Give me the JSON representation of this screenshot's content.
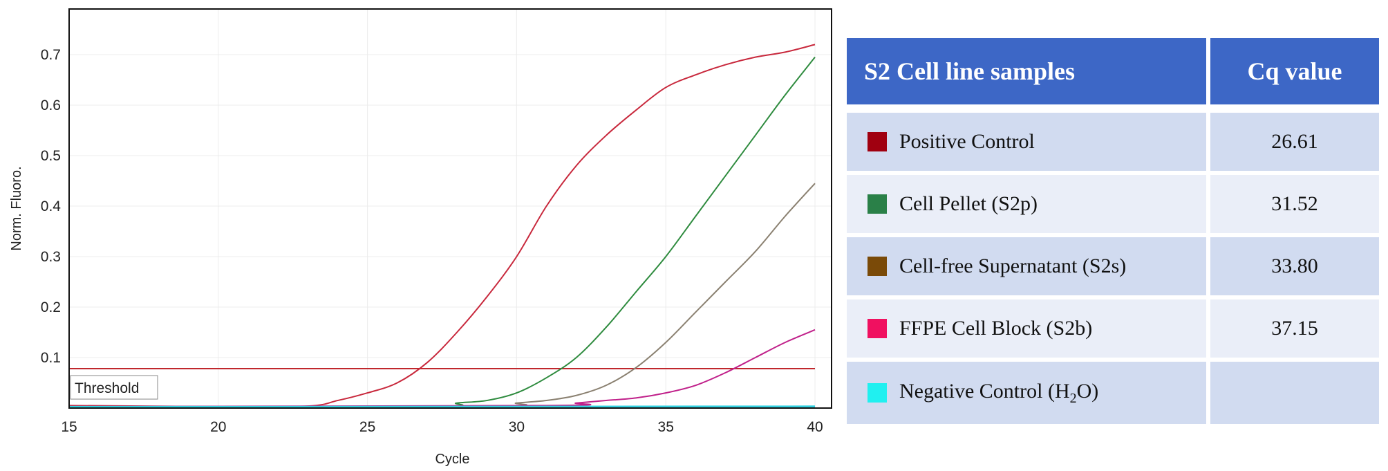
{
  "chart_data": {
    "type": "line",
    "xlabel": "Cycle",
    "ylabel": "Norm. Fluoro.",
    "xlim": [
      15,
      40.5
    ],
    "ylim": [
      0,
      0.79
    ],
    "xticks": [
      "15",
      "20",
      "25",
      "30",
      "35",
      "40"
    ],
    "yticks": [
      "0.1",
      "0.2",
      "0.3",
      "0.4",
      "0.5",
      "0.6",
      "0.7"
    ],
    "grid": true,
    "threshold": {
      "label": "Threshold",
      "value": 0.078,
      "color": "#c0282d"
    },
    "series": [
      {
        "color": "#c8283c",
        "x": [
          15,
          20,
          23,
          24,
          25,
          26,
          27,
          28,
          29,
          30,
          31,
          32,
          33,
          34,
          35,
          36,
          37,
          38,
          39,
          40
        ],
        "y": [
          0.005,
          0.003,
          0.004,
          0.015,
          0.03,
          0.05,
          0.09,
          0.15,
          0.22,
          0.3,
          0.4,
          0.48,
          0.54,
          0.59,
          0.635,
          0.66,
          0.68,
          0.695,
          0.705,
          0.72
        ]
      },
      {
        "color": "#2e8b3e",
        "x": [
          15,
          27,
          28,
          29,
          30,
          31,
          32,
          33,
          34,
          35,
          36,
          37,
          38,
          39,
          40
        ],
        "y": [
          0.003,
          0.003,
          0.01,
          0.015,
          0.03,
          0.06,
          0.1,
          0.16,
          0.23,
          0.3,
          0.38,
          0.46,
          0.54,
          0.62,
          0.695
        ]
      },
      {
        "color": "#8a8070",
        "x": [
          15,
          29,
          30,
          31,
          32,
          33,
          34,
          35,
          36,
          37,
          38,
          39,
          40
        ],
        "y": [
          0.003,
          0.004,
          0.01,
          0.015,
          0.025,
          0.045,
          0.08,
          0.13,
          0.19,
          0.25,
          0.31,
          0.38,
          0.445
        ]
      },
      {
        "color": "#c0208a",
        "x": [
          15,
          31,
          32,
          33,
          34,
          35,
          36,
          37,
          38,
          39,
          40
        ],
        "y": [
          0.003,
          0.005,
          0.01,
          0.015,
          0.02,
          0.03,
          0.045,
          0.07,
          0.1,
          0.13,
          0.155
        ]
      },
      {
        "color": "#30d0e0",
        "x": [
          15,
          40
        ],
        "y": [
          0.002,
          0.003
        ]
      }
    ]
  },
  "table": {
    "headers": [
      "S2 Cell line samples",
      "Cq value"
    ],
    "rows": [
      {
        "label": "Positive Control",
        "cq": "26.61",
        "color": "#a00010"
      },
      {
        "label": "Cell Pellet (S2p)",
        "cq": "31.52",
        "color": "#2a8048"
      },
      {
        "label": "Cell-free Supernatant (S2s)",
        "cq": "33.80",
        "color": "#7a4a08"
      },
      {
        "label": "FFPE Cell Block (S2b)",
        "cq": "37.15",
        "color": "#f01060"
      },
      {
        "label_pre": "Negative Control (H",
        "label_sub": "2",
        "label_post": "O)",
        "cq": "",
        "color": "#20f0f0"
      }
    ]
  }
}
